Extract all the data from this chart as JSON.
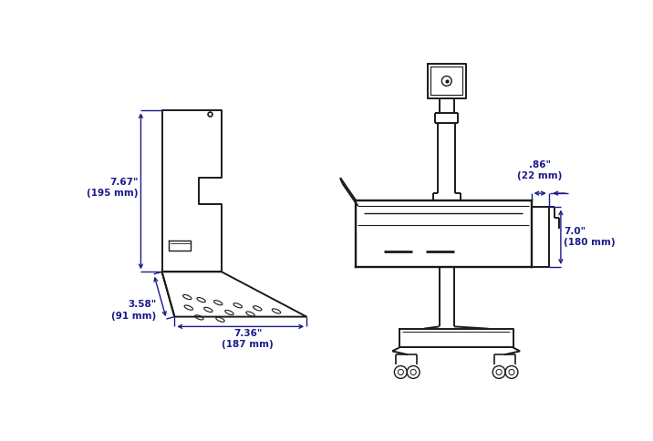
{
  "bg_color": "#ffffff",
  "line_color": "#1a1a1a",
  "dim_color": "#1a1a8c",
  "lw": 1.4,
  "dlw": 1.0,
  "dim_height_label": "7.67\"\n(195 mm)",
  "dim_depth_label": "3.58\"\n(91 mm)",
  "dim_width_label": "7.36\"\n(187 mm)",
  "dim_w86_label": ".86\"\n(22 mm)",
  "dim_h7_label": "7.0\"\n(180 mm)"
}
